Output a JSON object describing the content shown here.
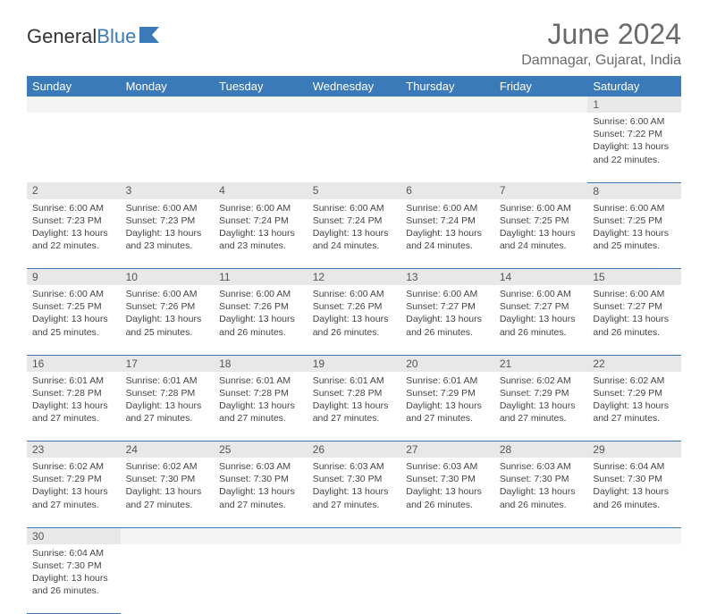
{
  "logo": {
    "text1": "General",
    "text2": "Blue"
  },
  "title": "June 2024",
  "location": "Damnagar, Gujarat, India",
  "colors": {
    "header_bg": "#3a7ab8",
    "header_fg": "#ffffff",
    "daynum_bg": "#e8e8e8",
    "border": "#3a7ab8"
  },
  "fonts": {
    "title_size": 32,
    "location_size": 16,
    "header_size": 13,
    "daynum_size": 12,
    "cell_size": 10.5
  },
  "daysOfWeek": [
    "Sunday",
    "Monday",
    "Tuesday",
    "Wednesday",
    "Thursday",
    "Friday",
    "Saturday"
  ],
  "weeks": [
    [
      null,
      null,
      null,
      null,
      null,
      null,
      {
        "n": "1",
        "sr": "Sunrise: 6:00 AM",
        "ss": "Sunset: 7:22 PM",
        "d1": "Daylight: 13 hours",
        "d2": "and 22 minutes."
      }
    ],
    [
      {
        "n": "2",
        "sr": "Sunrise: 6:00 AM",
        "ss": "Sunset: 7:23 PM",
        "d1": "Daylight: 13 hours",
        "d2": "and 22 minutes."
      },
      {
        "n": "3",
        "sr": "Sunrise: 6:00 AM",
        "ss": "Sunset: 7:23 PM",
        "d1": "Daylight: 13 hours",
        "d2": "and 23 minutes."
      },
      {
        "n": "4",
        "sr": "Sunrise: 6:00 AM",
        "ss": "Sunset: 7:24 PM",
        "d1": "Daylight: 13 hours",
        "d2": "and 23 minutes."
      },
      {
        "n": "5",
        "sr": "Sunrise: 6:00 AM",
        "ss": "Sunset: 7:24 PM",
        "d1": "Daylight: 13 hours",
        "d2": "and 24 minutes."
      },
      {
        "n": "6",
        "sr": "Sunrise: 6:00 AM",
        "ss": "Sunset: 7:24 PM",
        "d1": "Daylight: 13 hours",
        "d2": "and 24 minutes."
      },
      {
        "n": "7",
        "sr": "Sunrise: 6:00 AM",
        "ss": "Sunset: 7:25 PM",
        "d1": "Daylight: 13 hours",
        "d2": "and 24 minutes."
      },
      {
        "n": "8",
        "sr": "Sunrise: 6:00 AM",
        "ss": "Sunset: 7:25 PM",
        "d1": "Daylight: 13 hours",
        "d2": "and 25 minutes."
      }
    ],
    [
      {
        "n": "9",
        "sr": "Sunrise: 6:00 AM",
        "ss": "Sunset: 7:25 PM",
        "d1": "Daylight: 13 hours",
        "d2": "and 25 minutes."
      },
      {
        "n": "10",
        "sr": "Sunrise: 6:00 AM",
        "ss": "Sunset: 7:26 PM",
        "d1": "Daylight: 13 hours",
        "d2": "and 25 minutes."
      },
      {
        "n": "11",
        "sr": "Sunrise: 6:00 AM",
        "ss": "Sunset: 7:26 PM",
        "d1": "Daylight: 13 hours",
        "d2": "and 26 minutes."
      },
      {
        "n": "12",
        "sr": "Sunrise: 6:00 AM",
        "ss": "Sunset: 7:26 PM",
        "d1": "Daylight: 13 hours",
        "d2": "and 26 minutes."
      },
      {
        "n": "13",
        "sr": "Sunrise: 6:00 AM",
        "ss": "Sunset: 7:27 PM",
        "d1": "Daylight: 13 hours",
        "d2": "and 26 minutes."
      },
      {
        "n": "14",
        "sr": "Sunrise: 6:00 AM",
        "ss": "Sunset: 7:27 PM",
        "d1": "Daylight: 13 hours",
        "d2": "and 26 minutes."
      },
      {
        "n": "15",
        "sr": "Sunrise: 6:00 AM",
        "ss": "Sunset: 7:27 PM",
        "d1": "Daylight: 13 hours",
        "d2": "and 26 minutes."
      }
    ],
    [
      {
        "n": "16",
        "sr": "Sunrise: 6:01 AM",
        "ss": "Sunset: 7:28 PM",
        "d1": "Daylight: 13 hours",
        "d2": "and 27 minutes."
      },
      {
        "n": "17",
        "sr": "Sunrise: 6:01 AM",
        "ss": "Sunset: 7:28 PM",
        "d1": "Daylight: 13 hours",
        "d2": "and 27 minutes."
      },
      {
        "n": "18",
        "sr": "Sunrise: 6:01 AM",
        "ss": "Sunset: 7:28 PM",
        "d1": "Daylight: 13 hours",
        "d2": "and 27 minutes."
      },
      {
        "n": "19",
        "sr": "Sunrise: 6:01 AM",
        "ss": "Sunset: 7:28 PM",
        "d1": "Daylight: 13 hours",
        "d2": "and 27 minutes."
      },
      {
        "n": "20",
        "sr": "Sunrise: 6:01 AM",
        "ss": "Sunset: 7:29 PM",
        "d1": "Daylight: 13 hours",
        "d2": "and 27 minutes."
      },
      {
        "n": "21",
        "sr": "Sunrise: 6:02 AM",
        "ss": "Sunset: 7:29 PM",
        "d1": "Daylight: 13 hours",
        "d2": "and 27 minutes."
      },
      {
        "n": "22",
        "sr": "Sunrise: 6:02 AM",
        "ss": "Sunset: 7:29 PM",
        "d1": "Daylight: 13 hours",
        "d2": "and 27 minutes."
      }
    ],
    [
      {
        "n": "23",
        "sr": "Sunrise: 6:02 AM",
        "ss": "Sunset: 7:29 PM",
        "d1": "Daylight: 13 hours",
        "d2": "and 27 minutes."
      },
      {
        "n": "24",
        "sr": "Sunrise: 6:02 AM",
        "ss": "Sunset: 7:30 PM",
        "d1": "Daylight: 13 hours",
        "d2": "and 27 minutes."
      },
      {
        "n": "25",
        "sr": "Sunrise: 6:03 AM",
        "ss": "Sunset: 7:30 PM",
        "d1": "Daylight: 13 hours",
        "d2": "and 27 minutes."
      },
      {
        "n": "26",
        "sr": "Sunrise: 6:03 AM",
        "ss": "Sunset: 7:30 PM",
        "d1": "Daylight: 13 hours",
        "d2": "and 27 minutes."
      },
      {
        "n": "27",
        "sr": "Sunrise: 6:03 AM",
        "ss": "Sunset: 7:30 PM",
        "d1": "Daylight: 13 hours",
        "d2": "and 26 minutes."
      },
      {
        "n": "28",
        "sr": "Sunrise: 6:03 AM",
        "ss": "Sunset: 7:30 PM",
        "d1": "Daylight: 13 hours",
        "d2": "and 26 minutes."
      },
      {
        "n": "29",
        "sr": "Sunrise: 6:04 AM",
        "ss": "Sunset: 7:30 PM",
        "d1": "Daylight: 13 hours",
        "d2": "and 26 minutes."
      }
    ],
    [
      {
        "n": "30",
        "sr": "Sunrise: 6:04 AM",
        "ss": "Sunset: 7:30 PM",
        "d1": "Daylight: 13 hours",
        "d2": "and 26 minutes."
      },
      null,
      null,
      null,
      null,
      null,
      null
    ]
  ]
}
